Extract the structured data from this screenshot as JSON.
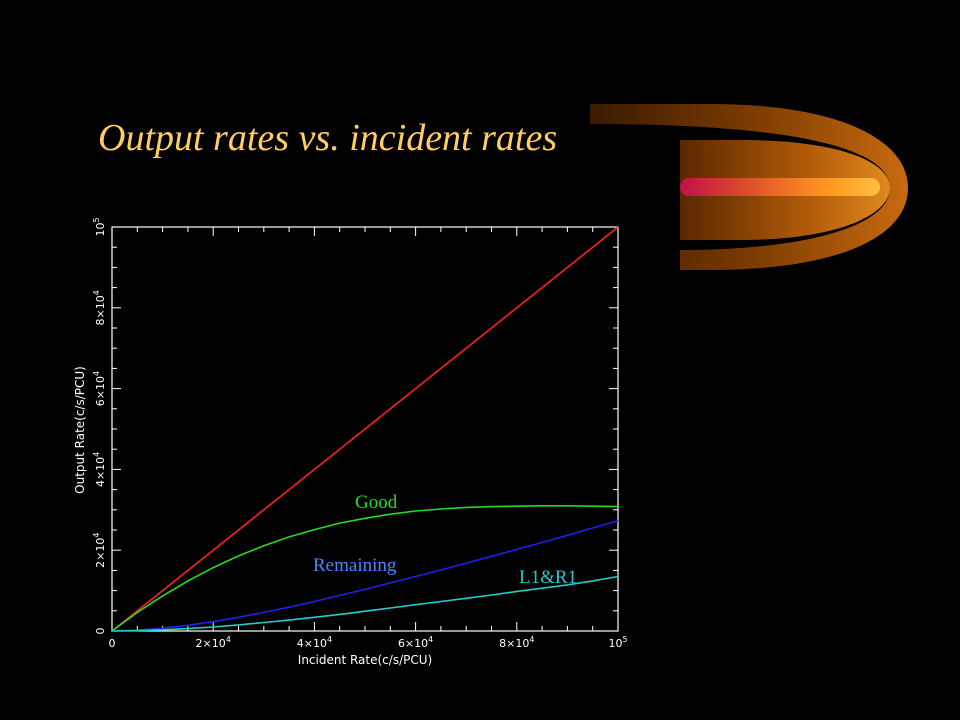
{
  "slide": {
    "title": "Output rates vs. incident rates",
    "title_color": "#ffcc66",
    "background": "#000000"
  },
  "chart_data": {
    "type": "line",
    "title": "",
    "xlabel": "Incident Rate(c/s/PCU)",
    "ylabel": "Output Rate(c/s/PCU)",
    "xlim": [
      0,
      100000
    ],
    "ylim": [
      0,
      100000
    ],
    "x_ticks": [
      {
        "value": 0,
        "mantissa": "0",
        "base": "",
        "exp": ""
      },
      {
        "value": 20000,
        "mantissa": "2",
        "base": "×10",
        "exp": "4"
      },
      {
        "value": 40000,
        "mantissa": "4",
        "base": "×10",
        "exp": "4"
      },
      {
        "value": 60000,
        "mantissa": "6",
        "base": "×10",
        "exp": "4"
      },
      {
        "value": 80000,
        "mantissa": "8",
        "base": "×10",
        "exp": "4"
      },
      {
        "value": 100000,
        "mantissa": "",
        "base": "10",
        "exp": "5"
      }
    ],
    "y_ticks": [
      {
        "value": 0,
        "mantissa": "0",
        "base": "",
        "exp": ""
      },
      {
        "value": 20000,
        "mantissa": "2",
        "base": "×10",
        "exp": "4"
      },
      {
        "value": 40000,
        "mantissa": "4",
        "base": "×10",
        "exp": "4"
      },
      {
        "value": 60000,
        "mantissa": "6",
        "base": "×10",
        "exp": "4"
      },
      {
        "value": 80000,
        "mantissa": "8",
        "base": "×10",
        "exp": "4"
      },
      {
        "value": 100000,
        "mantissa": "",
        "base": "10",
        "exp": "5"
      }
    ],
    "grid": false,
    "x": [
      0,
      5000,
      10000,
      15000,
      20000,
      25000,
      30000,
      35000,
      40000,
      45000,
      50000,
      55000,
      60000,
      65000,
      70000,
      75000,
      80000,
      85000,
      90000,
      95000,
      100000
    ],
    "series": [
      {
        "color": "#ff2020",
        "values": [
          0,
          5000,
          10000,
          15000,
          20000,
          25000,
          30000,
          35000,
          40000,
          45000,
          50000,
          55000,
          60000,
          65000,
          70000,
          75000,
          80000,
          85000,
          90000,
          95000,
          100000
        ]
      },
      {
        "name": "Good",
        "color": "#22dd22",
        "values": [
          0,
          4600,
          8700,
          12400,
          15700,
          18600,
          21100,
          23300,
          25100,
          26700,
          27900,
          28900,
          29700,
          30200,
          30600,
          30800,
          30900,
          31000,
          31000,
          30900,
          30800
        ]
      },
      {
        "name": "Remaining",
        "color": "#2020ee",
        "values": [
          0,
          200,
          700,
          1400,
          2300,
          3400,
          4600,
          5900,
          7300,
          8800,
          10300,
          11900,
          13500,
          15100,
          16800,
          18500,
          20200,
          21900,
          23700,
          25500,
          27300
        ]
      },
      {
        "name": "L1&R1",
        "color": "#22cccc",
        "values": [
          0,
          100,
          300,
          600,
          1000,
          1500,
          2100,
          2700,
          3400,
          4100,
          4900,
          5700,
          6500,
          7300,
          8100,
          8900,
          9800,
          10600,
          11400,
          12400,
          13500
        ]
      }
    ],
    "series_label_colors": {
      "Good": "#22dd22",
      "Remaining": "#4488ff",
      "L1&R1": "#22cccc"
    }
  }
}
